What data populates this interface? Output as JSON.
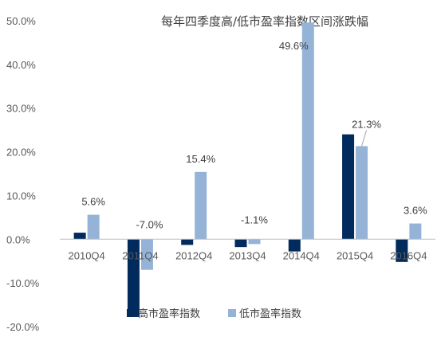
{
  "chart_data": {
    "type": "bar",
    "title": "每年四季度高/低市盈率指数区间涨跌幅",
    "xlabel": "",
    "ylabel": "",
    "categories": [
      "2010Q4",
      "2011Q4",
      "2012Q4",
      "2013Q4",
      "2014Q4",
      "2015Q4",
      "2016Q4"
    ],
    "ylim": [
      -20,
      50
    ],
    "yticks": [
      50,
      40,
      30,
      20,
      10,
      0,
      -10,
      -20
    ],
    "ytick_labels": [
      "50.0%",
      "40.0%",
      "30.0%",
      "20.0%",
      "10.0%",
      "0.0%",
      "-10.0%",
      "-20.0%"
    ],
    "series": [
      {
        "name": "高市盈率指数",
        "color": "#002B5C",
        "values": [
          1.5,
          -17.8,
          -1.3,
          -1.8,
          -2.8,
          24.0,
          -5.2
        ]
      },
      {
        "name": "低市盈率指数",
        "color": "#95B3D7",
        "values": [
          5.6,
          -7.0,
          15.4,
          -1.1,
          49.6,
          21.3,
          3.6
        ],
        "data_labels": [
          "5.6%",
          "-7.0%",
          "15.4%",
          "-1.1%",
          "49.6%",
          "21.3%",
          "3.6%"
        ]
      }
    ],
    "legend_position": "bottom-center",
    "grid": false
  }
}
